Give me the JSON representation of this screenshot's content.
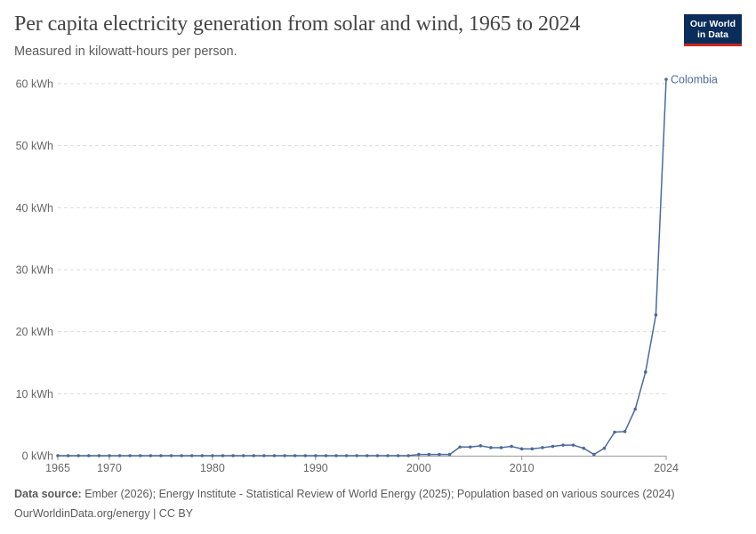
{
  "header": {
    "title": "Per capita electricity generation from solar and wind, 1965 to 2024",
    "subtitle": "Measured in kilowatt-hours per person."
  },
  "logo": {
    "line1": "Our World",
    "line2": "in Data"
  },
  "footer": {
    "source_label": "Data source:",
    "source_text": "Ember (2026); Energy Institute - Statistical Review of World Energy (2025); Population based on various sources (2024)",
    "credit": "OurWorldinData.org/energy | CC BY"
  },
  "colors": {
    "series": "#4c6a9c",
    "grid": "#dddddd",
    "axis_text": "#666666",
    "logo_bg": "#0b2d5b",
    "logo_accent": "#ce261e"
  },
  "chart_data": {
    "type": "line",
    "title": "Per capita electricity generation from solar and wind, 1965 to 2024",
    "subtitle": "Measured in kilowatt-hours per person.",
    "xlabel": "",
    "ylabel": "",
    "unit": "kWh",
    "xlim": [
      1965,
      2024
    ],
    "ylim": [
      0,
      60
    ],
    "x_ticks": [
      1965,
      1970,
      1980,
      1990,
      2000,
      2010,
      2024
    ],
    "y_ticks": [
      0,
      10,
      20,
      30,
      40,
      50,
      60
    ],
    "y_tick_labels": [
      "0 kWh",
      "10 kWh",
      "20 kWh",
      "30 kWh",
      "40 kWh",
      "50 kWh",
      "60 kWh"
    ],
    "grid": "horizontal dashed",
    "legend": "end-of-line label",
    "series": [
      {
        "name": "Colombia",
        "color": "#4c6a9c",
        "points": [
          [
            1965,
            0
          ],
          [
            1966,
            0
          ],
          [
            1967,
            0
          ],
          [
            1968,
            0
          ],
          [
            1969,
            0
          ],
          [
            1970,
            0
          ],
          [
            1971,
            0
          ],
          [
            1972,
            0
          ],
          [
            1973,
            0
          ],
          [
            1974,
            0
          ],
          [
            1975,
            0
          ],
          [
            1976,
            0
          ],
          [
            1977,
            0
          ],
          [
            1978,
            0
          ],
          [
            1979,
            0
          ],
          [
            1980,
            0
          ],
          [
            1981,
            0
          ],
          [
            1982,
            0
          ],
          [
            1983,
            0
          ],
          [
            1984,
            0
          ],
          [
            1985,
            0
          ],
          [
            1986,
            0
          ],
          [
            1987,
            0
          ],
          [
            1988,
            0
          ],
          [
            1989,
            0
          ],
          [
            1990,
            0
          ],
          [
            1991,
            0
          ],
          [
            1992,
            0
          ],
          [
            1993,
            0
          ],
          [
            1994,
            0
          ],
          [
            1995,
            0
          ],
          [
            1996,
            0
          ],
          [
            1997,
            0
          ],
          [
            1998,
            0
          ],
          [
            1999,
            0
          ],
          [
            2000,
            0.2
          ],
          [
            2001,
            0.2
          ],
          [
            2002,
            0.2
          ],
          [
            2003,
            0.2
          ],
          [
            2004,
            1.4
          ],
          [
            2005,
            1.4
          ],
          [
            2006,
            1.6
          ],
          [
            2007,
            1.3
          ],
          [
            2008,
            1.3
          ],
          [
            2009,
            1.5
          ],
          [
            2010,
            1.1
          ],
          [
            2011,
            1.1
          ],
          [
            2012,
            1.3
          ],
          [
            2013,
            1.5
          ],
          [
            2014,
            1.7
          ],
          [
            2015,
            1.7
          ],
          [
            2016,
            1.2
          ],
          [
            2017,
            0.2
          ],
          [
            2018,
            1.2
          ],
          [
            2019,
            3.8
          ],
          [
            2020,
            3.9
          ],
          [
            2021,
            7.5
          ],
          [
            2022,
            13.5
          ],
          [
            2023,
            22.7
          ],
          [
            2024,
            60.7
          ]
        ]
      }
    ]
  }
}
